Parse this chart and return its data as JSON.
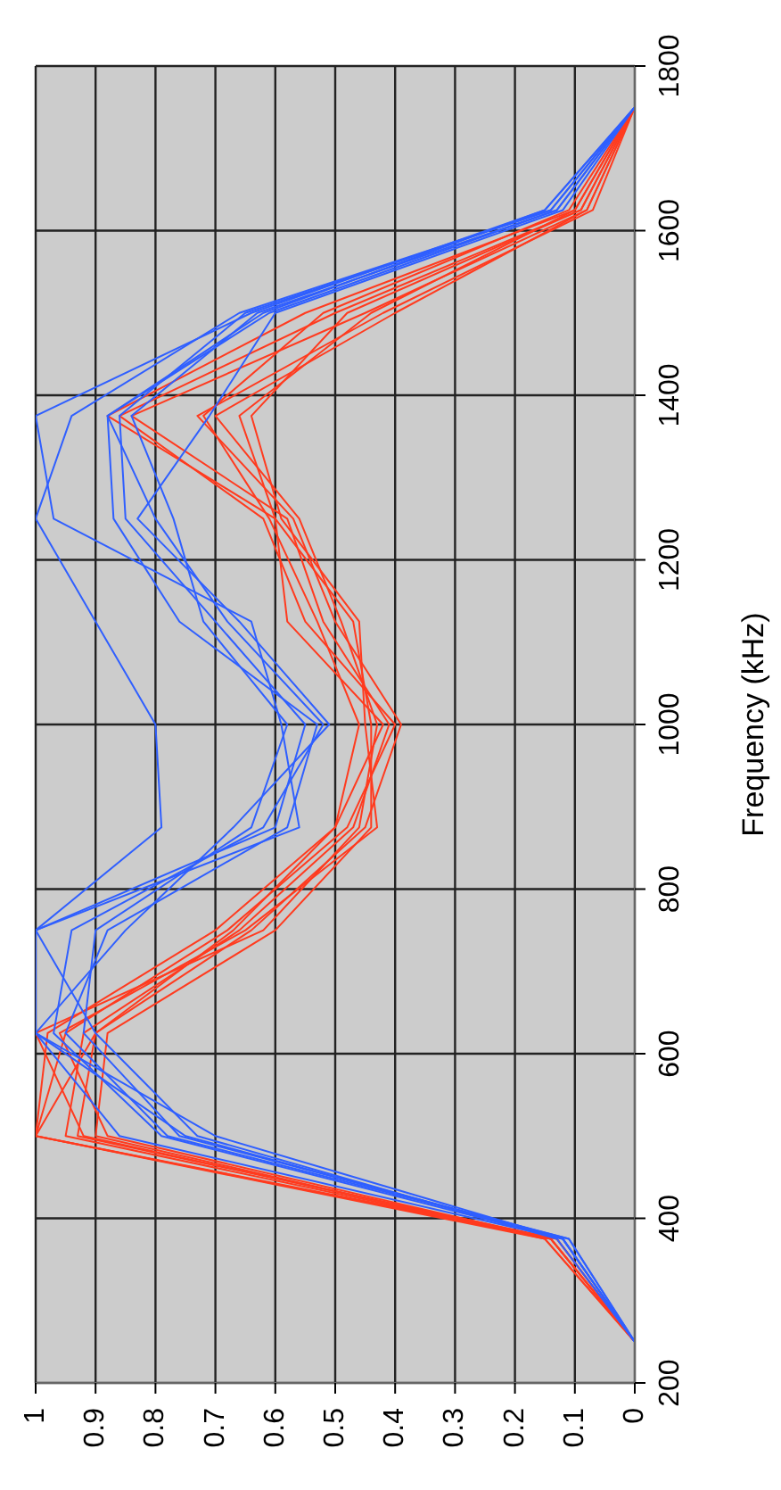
{
  "chart_data": {
    "type": "line",
    "ylabel": "Frequency (kHz)",
    "ylim": [
      200,
      1800
    ],
    "yticks": [
      200,
      400,
      600,
      800,
      1000,
      1200,
      1400,
      1600,
      1800
    ],
    "xlim": [
      1,
      0
    ],
    "xticks": [
      1,
      0.9,
      0.8,
      0.7,
      0.6,
      0.5,
      0.4,
      0.3,
      0.2,
      0.1,
      0
    ],
    "grid": true,
    "marker": "none",
    "line_style": "solid",
    "series": [
      {
        "color": "#ff3b1f",
        "x": [
          0,
          0,
          0.14,
          1.0,
          0.98,
          0.7,
          0.5,
          0.42,
          0.58,
          0.6,
          0.88,
          0.55,
          0.1,
          0
        ],
        "values": [
          200,
          250,
          375,
          500,
          625,
          750,
          875,
          1000,
          1125,
          1250,
          1375,
          1500,
          1625,
          1750
        ]
      },
      {
        "color": "#ff3b1f",
        "x": [
          0,
          0,
          0.15,
          1.0,
          0.95,
          0.68,
          0.48,
          0.4,
          0.55,
          0.62,
          0.86,
          0.5,
          0.09,
          0
        ],
        "values": [
          200,
          250,
          375,
          500,
          625,
          750,
          875,
          1000,
          1125,
          1250,
          1375,
          1500,
          1625,
          1750
        ]
      },
      {
        "color": "#ff3b1f",
        "x": [
          0,
          0,
          0.14,
          0.95,
          0.92,
          0.66,
          0.47,
          0.41,
          0.52,
          0.58,
          0.84,
          0.45,
          0.08,
          0
        ],
        "values": [
          200,
          250,
          375,
          500,
          625,
          750,
          875,
          1000,
          1125,
          1250,
          1375,
          1500,
          1625,
          1750
        ]
      },
      {
        "color": "#ff3b1f",
        "x": [
          0,
          0,
          0.13,
          0.93,
          0.9,
          0.64,
          0.45,
          0.39,
          0.5,
          0.57,
          0.73,
          0.42,
          0.07,
          0
        ],
        "values": [
          200,
          250,
          375,
          500,
          625,
          750,
          875,
          1000,
          1125,
          1250,
          1375,
          1500,
          1625,
          1750
        ]
      },
      {
        "color": "#ff3b1f",
        "x": [
          0,
          0,
          0.14,
          0.92,
          1.0,
          0.62,
          0.46,
          0.43,
          0.49,
          0.56,
          0.7,
          0.4,
          0.08,
          0
        ],
        "values": [
          200,
          250,
          375,
          500,
          625,
          750,
          875,
          1000,
          1125,
          1250,
          1375,
          1500,
          1625,
          1750
        ]
      },
      {
        "color": "#ff3b1f",
        "x": [
          0,
          0,
          0.15,
          0.9,
          0.88,
          0.6,
          0.44,
          0.44,
          0.47,
          0.6,
          0.66,
          0.44,
          0.1,
          0
        ],
        "values": [
          200,
          250,
          375,
          500,
          625,
          750,
          875,
          1000,
          1125,
          1250,
          1375,
          1500,
          1625,
          1750
        ]
      },
      {
        "color": "#ff3b1f",
        "x": [
          0,
          0,
          0.14,
          0.88,
          0.96,
          0.65,
          0.43,
          0.45,
          0.46,
          0.59,
          0.64,
          0.48,
          0.09,
          0
        ],
        "values": [
          200,
          250,
          375,
          500,
          625,
          750,
          875,
          1000,
          1125,
          1250,
          1375,
          1500,
          1625,
          1750
        ]
      },
      {
        "color": "#ff3b1f",
        "x": [
          0,
          0,
          0.13,
          1.0,
          0.9,
          0.67,
          0.5,
          0.46,
          0.53,
          0.61,
          0.72,
          0.52,
          0.11,
          0
        ],
        "values": [
          200,
          250,
          375,
          500,
          625,
          750,
          875,
          1000,
          1125,
          1250,
          1375,
          1500,
          1625,
          1750
        ]
      },
      {
        "color": "#2f5fff",
        "x": [
          0,
          0,
          0.12,
          0.86,
          1.0,
          1.0,
          0.6,
          0.55,
          0.7,
          0.85,
          0.86,
          0.65,
          0.14,
          0
        ],
        "values": [
          200,
          250,
          375,
          500,
          625,
          750,
          875,
          1000,
          1125,
          1250,
          1375,
          1500,
          1625,
          1750
        ]
      },
      {
        "color": "#2f5fff",
        "x": [
          0,
          0,
          0.12,
          0.79,
          0.97,
          0.94,
          0.62,
          0.52,
          0.68,
          0.8,
          0.88,
          0.62,
          0.15,
          0
        ],
        "values": [
          200,
          250,
          375,
          500,
          625,
          750,
          875,
          1000,
          1125,
          1250,
          1375,
          1500,
          1625,
          1750
        ]
      },
      {
        "color": "#2f5fff",
        "x": [
          0,
          0,
          0.11,
          0.76,
          0.92,
          0.9,
          0.64,
          0.58,
          0.72,
          0.77,
          0.84,
          0.63,
          0.13,
          0
        ],
        "values": [
          200,
          250,
          375,
          500,
          625,
          750,
          875,
          1000,
          1125,
          1250,
          1375,
          1500,
          1625,
          1750
        ]
      },
      {
        "color": "#2f5fff",
        "x": [
          0,
          0,
          0.12,
          0.7,
          1.0,
          0.85,
          0.67,
          0.51,
          0.66,
          0.83,
          0.71,
          0.6,
          0.12,
          0
        ],
        "values": [
          200,
          250,
          375,
          500,
          625,
          750,
          875,
          1000,
          1125,
          1250,
          1375,
          1500,
          1625,
          1750
        ]
      },
      {
        "color": "#2f5fff",
        "x": [
          0,
          0,
          0.13,
          0.73,
          0.9,
          1.0,
          0.79,
          0.8,
          0.9,
          1.0,
          0.94,
          0.66,
          0.14,
          0
        ],
        "values": [
          200,
          250,
          375,
          500,
          625,
          750,
          875,
          1000,
          1125,
          1250,
          1375,
          1500,
          1625,
          1750
        ]
      },
      {
        "color": "#2f5fff",
        "x": [
          0,
          0,
          0.12,
          0.75,
          1.0,
          1.0,
          0.56,
          0.59,
          0.64,
          0.97,
          1.0,
          0.64,
          0.15,
          0
        ],
        "values": [
          200,
          250,
          375,
          500,
          625,
          750,
          875,
          1000,
          1125,
          1250,
          1375,
          1500,
          1625,
          1750
        ]
      },
      {
        "color": "#2f5fff",
        "x": [
          0,
          0,
          0.11,
          0.78,
          0.95,
          0.88,
          0.58,
          0.53,
          0.76,
          0.87,
          0.88,
          0.61,
          0.13,
          0
        ],
        "values": [
          200,
          250,
          375,
          500,
          625,
          750,
          875,
          1000,
          1125,
          1250,
          1375,
          1500,
          1625,
          1750
        ]
      }
    ]
  }
}
